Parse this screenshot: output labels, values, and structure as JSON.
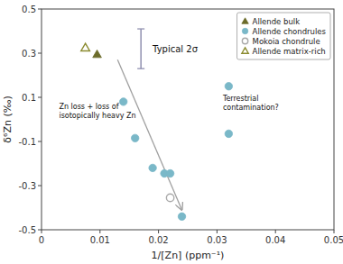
{
  "chart_data": {
    "type": "scatter",
    "xlabel": "1/[Zn] (ppm⁻¹)",
    "ylabel": "δ⁦⁶Zn (‰)",
    "xlim": [
      0,
      0.05
    ],
    "ylim": [
      -0.5,
      0.5
    ],
    "xticks": [
      0,
      0.01,
      0.02,
      0.03,
      0.04,
      0.05
    ],
    "yticks": [
      -0.5,
      -0.3,
      -0.1,
      0.1,
      0.3,
      0.5
    ],
    "grid": false,
    "legend": "upper right",
    "series": [
      {
        "name": "Allende bulk",
        "color": "#6b6b2a",
        "marker": "triangle",
        "x": [
          0.0095
        ],
        "values": [
          0.295
        ]
      },
      {
        "name": "Allende chondrules",
        "color": "#7ab8c8",
        "marker": "circle",
        "x": [
          0.014,
          0.016,
          0.019,
          0.021,
          0.022,
          0.024,
          0.032,
          0.032
        ],
        "values": [
          0.08,
          -0.085,
          -0.22,
          -0.245,
          -0.245,
          -0.44,
          0.15,
          -0.065
        ]
      },
      {
        "name": "Mokoia chondrule",
        "color": "#aaaaaa",
        "marker": "circle-open",
        "x": [
          0.022
        ],
        "values": [
          -0.355
        ]
      },
      {
        "name": "Allende matrix-rich",
        "color": "#8b8b30",
        "marker": "triangle-open",
        "x": [
          0.0075
        ],
        "values": [
          0.325
        ]
      }
    ],
    "arrow": {
      "color": "#a0a0a0",
      "x": [
        0.013,
        0.024
      ],
      "y": [
        0.27,
        -0.41
      ]
    },
    "error_bar": {
      "color": "#9090b0",
      "x": 0.017,
      "y": 0.32,
      "error": 0.09
    },
    "annotations": [
      {
        "text": "Typical 2σ",
        "x": 0.019,
        "y": 0.32
      },
      {
        "text": "Zn loss + loss of\nisotopically heavy Zn",
        "x": 0.003,
        "y": 0.04
      },
      {
        "text": "Terrestrial\ncontamination?",
        "x": 0.031,
        "y": 0.075
      }
    ]
  }
}
